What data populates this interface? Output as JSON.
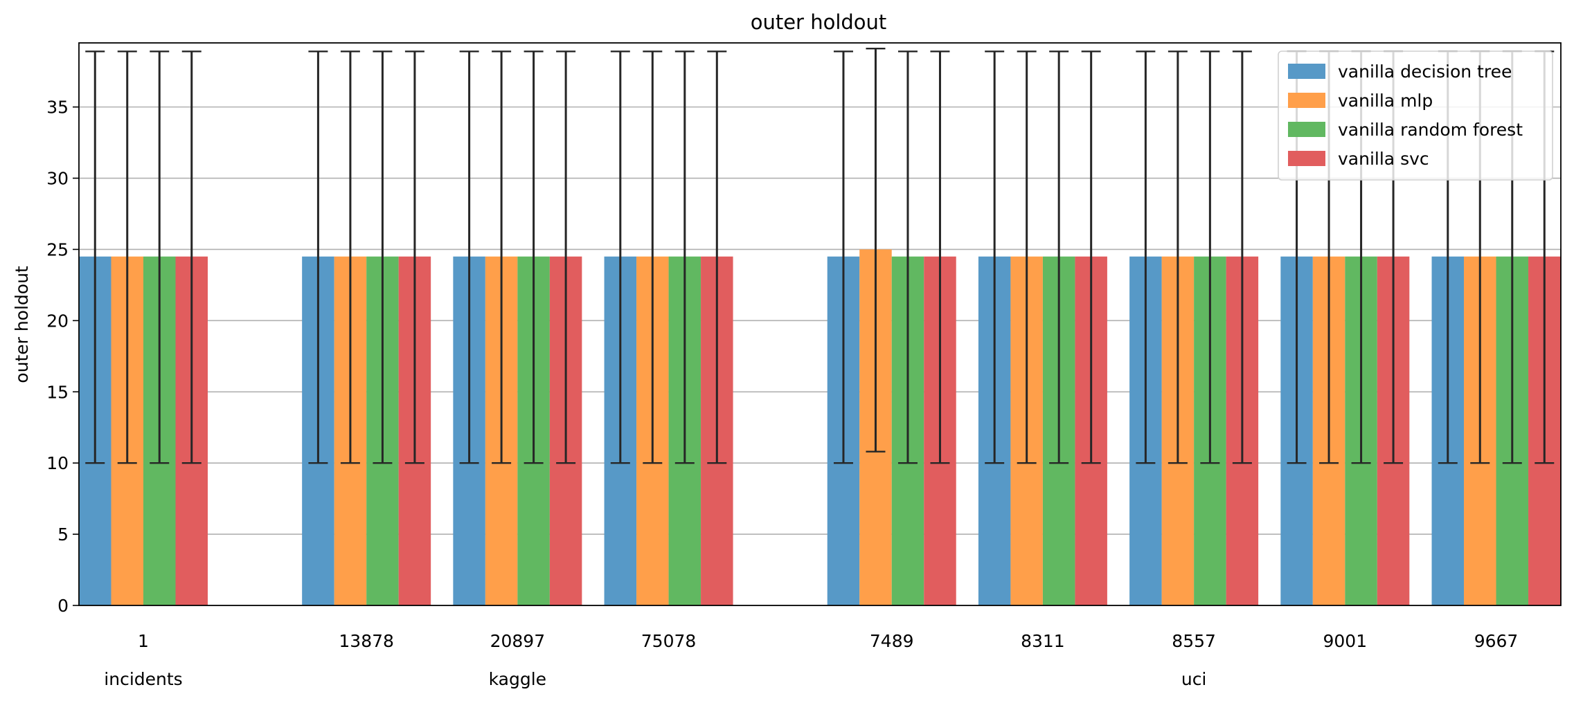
{
  "chart_data": {
    "type": "bar",
    "title": "outer holdout",
    "xlabel": "",
    "ylabel": "outer holdout",
    "ylim": [
      0,
      39.5
    ],
    "yticks": [
      0,
      5,
      10,
      15,
      20,
      25,
      30,
      35
    ],
    "grid": "y",
    "legend_position": "top-right",
    "categories": [
      "1",
      "13878",
      "20897",
      "75078",
      "7489",
      "8311",
      "8557",
      "9001",
      "9667"
    ],
    "groups": [
      {
        "label": "incidents",
        "categories": [
          "1"
        ]
      },
      {
        "label": "kaggle",
        "categories": [
          "13878",
          "20897",
          "75078"
        ]
      },
      {
        "label": "uci",
        "categories": [
          "7489",
          "8311",
          "8557",
          "9001",
          "9667"
        ]
      }
    ],
    "series": [
      {
        "name": "vanilla decision tree",
        "color": "#5799c7",
        "values": [
          24.5,
          24.5,
          24.5,
          24.5,
          24.5,
          24.5,
          24.5,
          24.5,
          24.5
        ],
        "err_low": [
          10,
          10,
          10,
          10,
          10,
          10,
          10,
          10,
          10
        ],
        "err_high": [
          38.9,
          38.9,
          38.9,
          38.9,
          38.9,
          38.9,
          38.9,
          38.9,
          38.9
        ]
      },
      {
        "name": "vanilla mlp",
        "color": "#ff9f4a",
        "values": [
          24.5,
          24.5,
          24.5,
          24.5,
          25.0,
          24.5,
          24.5,
          24.5,
          24.5
        ],
        "err_low": [
          10,
          10,
          10,
          10,
          10.8,
          10,
          10,
          10,
          10
        ],
        "err_high": [
          38.9,
          38.9,
          38.9,
          38.9,
          39.1,
          38.9,
          38.9,
          38.9,
          38.9
        ]
      },
      {
        "name": "vanilla random forest",
        "color": "#61b861",
        "values": [
          24.5,
          24.5,
          24.5,
          24.5,
          24.5,
          24.5,
          24.5,
          24.5,
          24.5
        ],
        "err_low": [
          10,
          10,
          10,
          10,
          10,
          10,
          10,
          10,
          10
        ],
        "err_high": [
          38.9,
          38.9,
          38.9,
          38.9,
          38.9,
          38.9,
          38.9,
          38.9,
          38.9
        ]
      },
      {
        "name": "vanilla svc",
        "color": "#e15d5e",
        "values": [
          24.5,
          24.5,
          24.5,
          24.5,
          24.5,
          24.5,
          24.5,
          24.5,
          24.5
        ],
        "err_low": [
          10,
          10,
          10,
          10,
          10,
          10,
          10,
          10,
          10
        ],
        "err_high": [
          38.9,
          38.9,
          38.9,
          38.9,
          38.9,
          38.9,
          38.9,
          38.9,
          38.9
        ]
      }
    ]
  }
}
